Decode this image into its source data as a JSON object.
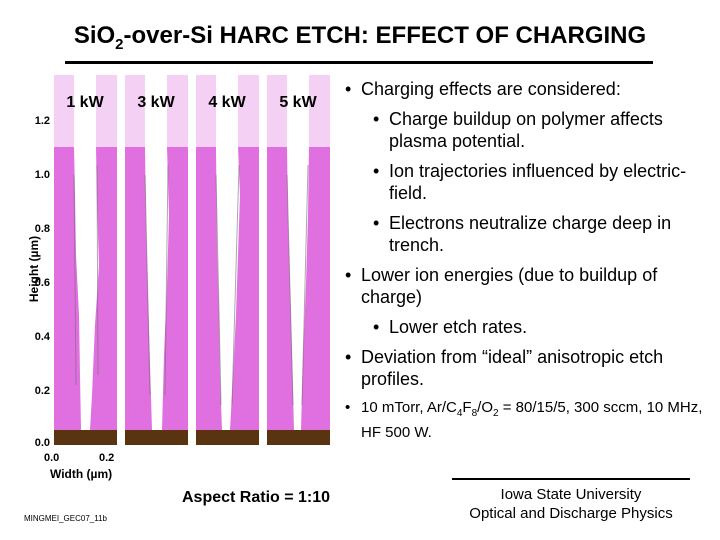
{
  "title": {
    "pre": "Si",
    "mid": "O",
    "sub": "2",
    "post": "-over-Si HARC ETCH: EFFECT OF CHARGING"
  },
  "figure": {
    "panels": [
      "1 kW",
      "3 kW",
      "4 kW",
      "5 kW"
    ],
    "y_axis_label": "Height (µm)",
    "y_ticks": [
      "1.2",
      "1.0",
      "0.8",
      "0.6",
      "0.4",
      "0.2",
      "0.0"
    ],
    "x_axis_label": "Width (µm)",
    "x_ticks": [
      "0.0",
      "0.2"
    ],
    "colors": {
      "mask": "#f4d0f4",
      "oxide": "#e070e0",
      "silicon": "#5a3410",
      "trench": "#ffffff"
    }
  },
  "bullets": [
    {
      "level": 1,
      "text": "Charging effects are considered:"
    },
    {
      "level": 2,
      "text": "Charge buildup on polymer affects plasma potential."
    },
    {
      "level": 2,
      "text": "Ion trajectories influenced by electric-field."
    },
    {
      "level": 2,
      "text": "Electrons neutralize charge deep in trench."
    },
    {
      "level": 1,
      "text": "Lower ion energies (due to buildup of charge)"
    },
    {
      "level": 2,
      "text": "Lower etch rates."
    },
    {
      "level": 1,
      "text": "Deviation from “ideal” anisotropic etch profiles."
    }
  ],
  "conditions": {
    "a": "10 mTorr, Ar/C",
    "s1": "4",
    "b": "F",
    "s2": "8",
    "c": "/O",
    "s3": "2",
    "d": " = 80/15/5, 300 sccm, 10 MHz, HF 500 W."
  },
  "aspect_ratio": "Aspect Ratio = 1:10",
  "slide_code": "MINGMEI_GEC07_11b",
  "affiliation": {
    "line1": "Iowa State University",
    "line2": "Optical and Discharge Physics"
  }
}
